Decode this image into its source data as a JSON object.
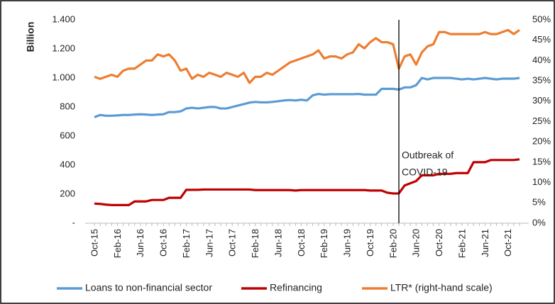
{
  "chart_data": {
    "type": "line",
    "y_label": "Billion",
    "categories": [
      "Oct-15",
      null,
      null,
      null,
      "Feb-16",
      null,
      null,
      null,
      "Jun-16",
      null,
      null,
      null,
      "Oct-16",
      null,
      null,
      null,
      "Feb-17",
      null,
      null,
      null,
      "Jun-17",
      null,
      null,
      null,
      "Oct-17",
      null,
      null,
      null,
      "Feb-18",
      null,
      null,
      null,
      "Jun-18",
      null,
      null,
      null,
      "Oct-18",
      null,
      null,
      null,
      "Feb-19",
      null,
      null,
      null,
      "Jun-19",
      null,
      null,
      null,
      "Oct-19",
      null,
      null,
      null,
      "Feb-20",
      null,
      null,
      null,
      "Jun-20",
      null,
      null,
      null,
      "Oct-20",
      null,
      null,
      null,
      "Feb-21",
      null,
      null,
      null,
      "Jun-21",
      null,
      null,
      null,
      "Oct-21",
      null,
      null
    ],
    "series": [
      {
        "name": "Loans to non-financial sector",
        "color": "#5b9bd5",
        "values": [
          730,
          745,
          740,
          740,
          742,
          745,
          745,
          748,
          750,
          748,
          745,
          748,
          750,
          765,
          765,
          770,
          790,
          795,
          790,
          795,
          800,
          800,
          790,
          790,
          800,
          810,
          820,
          830,
          835,
          832,
          832,
          835,
          840,
          845,
          848,
          845,
          850,
          845,
          880,
          890,
          885,
          888,
          888,
          888,
          888,
          888,
          890,
          885,
          885,
          885,
          925,
          925,
          925,
          920,
          935,
          935,
          950,
          1000,
          990,
          1000,
          1000,
          1000,
          1000,
          995,
          990,
          995,
          990,
          995,
          1000,
          995,
          990,
          995,
          995,
          995,
          1000
        ]
      },
      {
        "name": "Refinancing",
        "color": "#c00000",
        "values": [
          135,
          133,
          128,
          125,
          125,
          125,
          125,
          150,
          150,
          150,
          160,
          160,
          160,
          175,
          175,
          175,
          230,
          230,
          230,
          232,
          232,
          232,
          232,
          232,
          232,
          232,
          232,
          232,
          228,
          228,
          228,
          228,
          228,
          228,
          228,
          225,
          228,
          228,
          228,
          228,
          228,
          228,
          228,
          228,
          228,
          228,
          228,
          228,
          225,
          225,
          225,
          210,
          205,
          205,
          260,
          275,
          290,
          330,
          330,
          330,
          340,
          340,
          340,
          345,
          345,
          345,
          420,
          420,
          420,
          435,
          435,
          435,
          435,
          435,
          440
        ]
      },
      {
        "name": "LTR* (right-hand scale)",
        "color": "#ed7d31",
        "axis": "y2",
        "values": [
          36,
          35.5,
          36,
          36.5,
          36,
          37.5,
          38,
          38,
          39,
          40,
          40,
          41.5,
          41,
          41.5,
          40,
          37.5,
          38,
          35.5,
          36.5,
          36,
          37,
          36.5,
          36,
          37,
          36.5,
          36,
          37,
          34.5,
          36,
          36,
          37,
          36.5,
          37.5,
          38.5,
          39.5,
          40,
          40.5,
          41,
          41.5,
          42.5,
          40.5,
          41,
          41,
          40.5,
          41.5,
          42,
          44,
          43,
          44.5,
          45.5,
          44.5,
          44.5,
          44,
          38,
          41,
          41.5,
          39,
          42,
          43.5,
          44,
          47,
          47,
          46.5,
          46.5,
          46.5,
          46.5,
          46.5,
          46.5,
          47,
          46.5,
          46.5,
          47,
          47.5,
          46.5,
          47.5
        ]
      }
    ],
    "ylim": [
      0,
      1400
    ],
    "yticks": [
      {
        "value": 0,
        "label": "-"
      },
      200,
      400,
      600,
      800,
      {
        "value": 1000,
        "label": "1.000"
      },
      {
        "value": 1200,
        "label": "1.200"
      },
      {
        "value": 1400,
        "label": "1.400"
      }
    ],
    "y2lim": [
      0,
      50
    ],
    "y2ticks": [
      {
        "value": 0,
        "label": "0%"
      },
      {
        "value": 5,
        "label": "5%"
      },
      {
        "value": 10,
        "label": "10%"
      },
      {
        "value": 15,
        "label": "15%"
      },
      {
        "value": 20,
        "label": "20%"
      },
      {
        "value": 25,
        "label": "25%"
      },
      {
        "value": 30,
        "label": "30%"
      },
      {
        "value": 35,
        "label": "35%"
      },
      {
        "value": 40,
        "label": "40%"
      },
      {
        "value": 45,
        "label": "45%"
      },
      {
        "value": 50,
        "label": "50%"
      }
    ],
    "annotation": {
      "lines": [
        "Outbreak of",
        "COVID-19"
      ],
      "category": 53
    },
    "legend": "bottom"
  }
}
